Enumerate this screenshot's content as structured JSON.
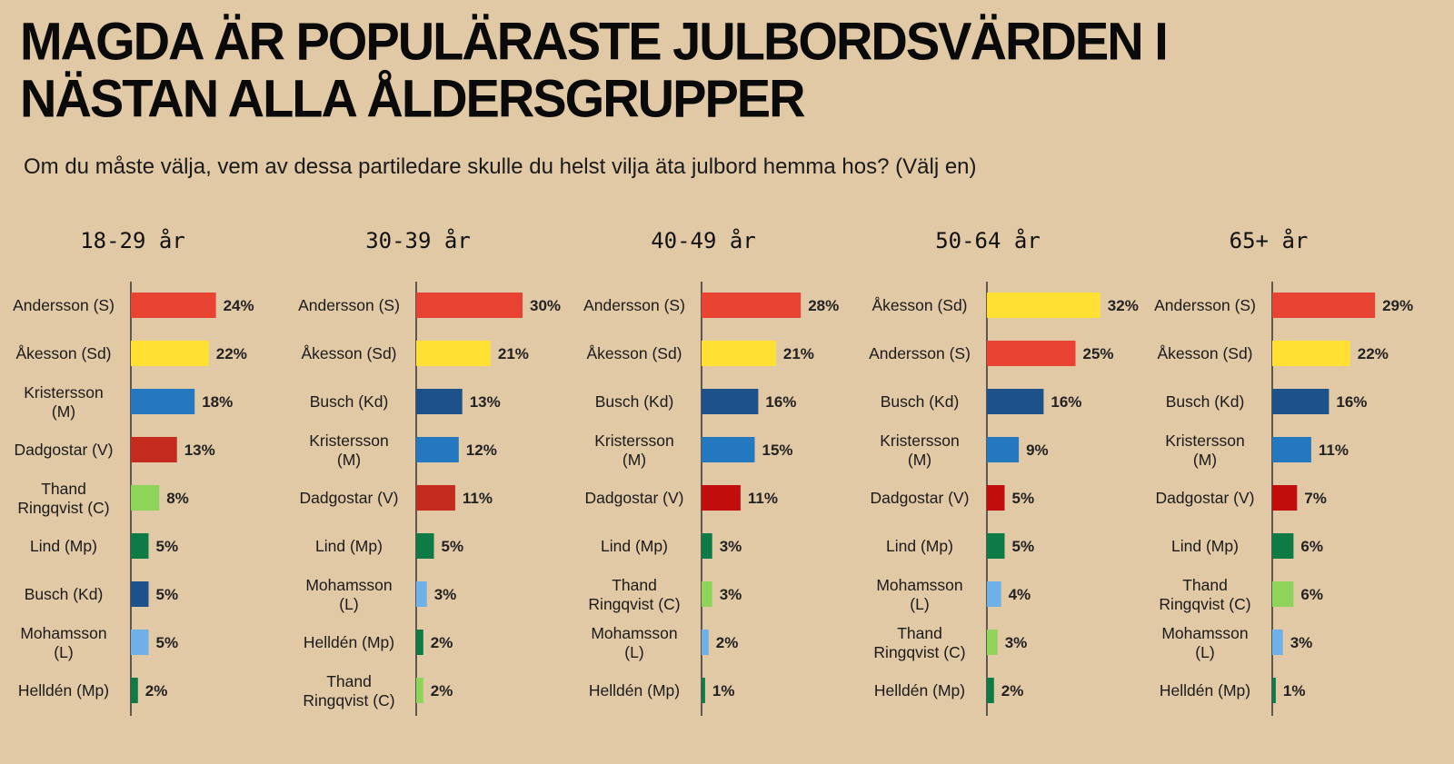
{
  "title": "MAGDA ÄR POPULÄRASTE JULBORDSVÄRDEN I NÄSTAN ALLA ÅLDERSGRUPPER",
  "subtitle": "Om du måste välja, vem av dessa partiledare skulle du helst vilja äta julbord hemma hos? (Välj en)",
  "colors": {
    "background": "#e2c9a6",
    "S": "#e84232",
    "Sd": "#ffe033",
    "M": "#2378c0",
    "V": "#c42a1e",
    "V_dark": "#c20d0d",
    "C": "#8fd45a",
    "Mp": "#0e7a46",
    "Kd": "#1d518a",
    "L": "#6eb0e8"
  },
  "chart_data": [
    {
      "type": "bar",
      "orientation": "horizontal",
      "title": "18-29 år",
      "categories": [
        "Andersson (S)",
        "Åkesson (Sd)",
        "Kristersson (M)",
        "Dadgostar (V)",
        "Thand Ringqvist (C)",
        "Lind (Mp)",
        "Busch (Kd)",
        "Mohamsson (L)",
        "Helldén (Mp)"
      ],
      "values": [
        24,
        22,
        18,
        13,
        8,
        5,
        5,
        5,
        2
      ],
      "labels": [
        "24%",
        "22%",
        "18%",
        "13%",
        "8%",
        "5%",
        "5%",
        "5%",
        "2%"
      ],
      "colors": [
        "#e84232",
        "#ffe033",
        "#2378c0",
        "#c42a1e",
        "#8fd45a",
        "#0e7a46",
        "#1d518a",
        "#6eb0e8",
        "#0e7a46"
      ],
      "xlim": [
        0,
        32
      ]
    },
    {
      "type": "bar",
      "orientation": "horizontal",
      "title": "30-39 år",
      "categories": [
        "Andersson (S)",
        "Åkesson (Sd)",
        "Busch (Kd)",
        "Kristersson (M)",
        "Dadgostar (V)",
        "Lind (Mp)",
        "Mohamsson (L)",
        "Helldén (Mp)",
        "Thand Ringqvist (C)"
      ],
      "values": [
        30,
        21,
        13,
        12,
        11,
        5,
        3,
        2,
        2
      ],
      "labels": [
        "30%",
        "21%",
        "13%",
        "12%",
        "11%",
        "5%",
        "3%",
        "2%",
        "2%"
      ],
      "colors": [
        "#e84232",
        "#ffe033",
        "#1d518a",
        "#2378c0",
        "#c42a1e",
        "#0e7a46",
        "#6eb0e8",
        "#0e7a46",
        "#8fd45a"
      ],
      "xlim": [
        0,
        32
      ]
    },
    {
      "type": "bar",
      "orientation": "horizontal",
      "title": "40-49 år",
      "categories": [
        "Andersson (S)",
        "Åkesson (Sd)",
        "Busch (Kd)",
        "Kristersson (M)",
        "Dadgostar (V)",
        "Lind (Mp)",
        "Thand Ringqvist (C)",
        "Mohamsson (L)",
        "Helldén (Mp)"
      ],
      "values": [
        28,
        21,
        16,
        15,
        11,
        3,
        3,
        2,
        1
      ],
      "labels": [
        "28%",
        "21%",
        "16%",
        "15%",
        "11%",
        "3%",
        "3%",
        "2%",
        "1%"
      ],
      "colors": [
        "#e84232",
        "#ffe033",
        "#1d518a",
        "#2378c0",
        "#c20d0d",
        "#0e7a46",
        "#8fd45a",
        "#6eb0e8",
        "#0e7a46"
      ],
      "xlim": [
        0,
        32
      ]
    },
    {
      "type": "bar",
      "orientation": "horizontal",
      "title": "50-64 år",
      "categories": [
        "Åkesson (Sd)",
        "Andersson (S)",
        "Busch (Kd)",
        "Kristersson (M)",
        "Dadgostar (V)",
        "Lind (Mp)",
        "Mohamsson (L)",
        "Thand Ringqvist (C)",
        "Helldén (Mp)"
      ],
      "values": [
        32,
        25,
        16,
        9,
        5,
        5,
        4,
        3,
        2
      ],
      "labels": [
        "32%",
        "25%",
        "16%",
        "9%",
        "5%",
        "5%",
        "4%",
        "3%",
        "2%"
      ],
      "colors": [
        "#ffe033",
        "#e84232",
        "#1d518a",
        "#2378c0",
        "#c20d0d",
        "#0e7a46",
        "#6eb0e8",
        "#8fd45a",
        "#0e7a46"
      ],
      "xlim": [
        0,
        32
      ]
    },
    {
      "type": "bar",
      "orientation": "horizontal",
      "title": "65+ år",
      "categories": [
        "Andersson (S)",
        "Åkesson (Sd)",
        "Busch (Kd)",
        "Kristersson (M)",
        "Dadgostar (V)",
        "Lind (Mp)",
        "Thand Ringqvist (C)",
        "Mohamsson (L)",
        "Helldén (Mp)"
      ],
      "values": [
        29,
        22,
        16,
        11,
        7,
        6,
        6,
        3,
        1
      ],
      "labels": [
        "29%",
        "22%",
        "16%",
        "11%",
        "7%",
        "6%",
        "6%",
        "3%",
        "1%"
      ],
      "colors": [
        "#e84232",
        "#ffe033",
        "#1d518a",
        "#2378c0",
        "#c20d0d",
        "#0e7a46",
        "#8fd45a",
        "#6eb0e8",
        "#0e7a46"
      ],
      "xlim": [
        0,
        32
      ]
    }
  ]
}
